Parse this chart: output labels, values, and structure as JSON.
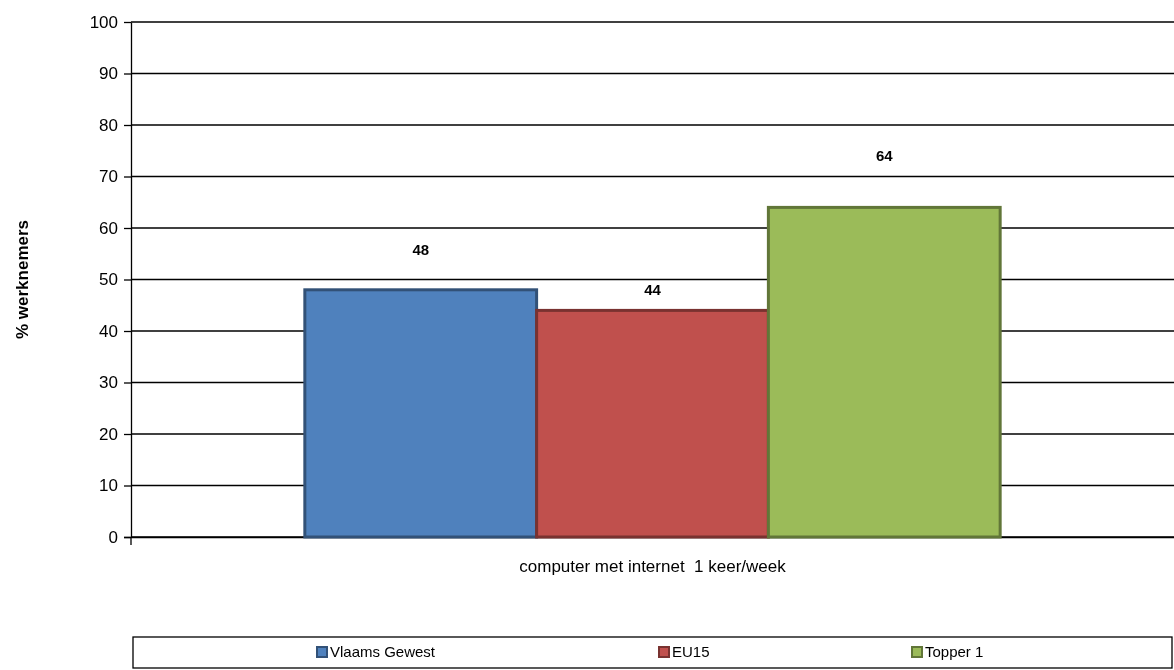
{
  "chart_data": {
    "type": "bar",
    "ylabel": "% werknemers",
    "categories": [
      "computer met internet  1 keer/week"
    ],
    "series": [
      {
        "name": "Vlaams Gewest",
        "color": "#4f81bd",
        "values": [
          48
        ]
      },
      {
        "name": "EU15",
        "color": "#c0504d",
        "values": [
          44
        ]
      },
      {
        "name": "Topper 1",
        "color": "#9bbb59",
        "values": [
          64
        ]
      }
    ],
    "ylim": [
      0,
      100
    ],
    "yticks": [
      0,
      10,
      20,
      30,
      40,
      50,
      60,
      70,
      80,
      90,
      100
    ],
    "grid": "y",
    "legend": "bottom",
    "data_labels": true
  }
}
